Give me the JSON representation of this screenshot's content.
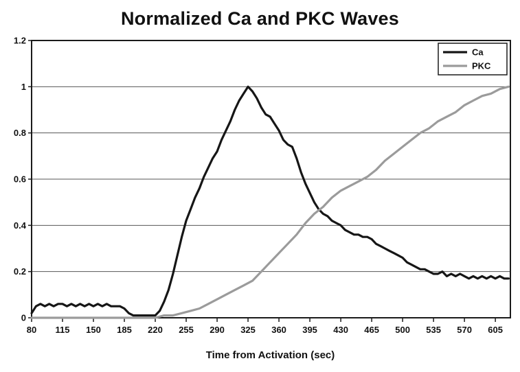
{
  "title": "Normalized Ca and PKC Waves",
  "xlabel": "Time from Activation (sec)",
  "chart_data": {
    "type": "line",
    "title": "Normalized Ca and PKC Waves",
    "xlabel": "Time from Activation (sec)",
    "ylabel": "",
    "xlim": [
      80,
      622
    ],
    "ylim": [
      0,
      1.2
    ],
    "xticks": [
      80,
      115,
      150,
      185,
      220,
      255,
      290,
      325,
      360,
      395,
      430,
      465,
      500,
      535,
      570,
      605
    ],
    "yticks": [
      0,
      0.2,
      0.4,
      0.6,
      0.8,
      1,
      1.2
    ],
    "ytick_labels": [
      "0",
      "0.2",
      "0.4",
      "0.6",
      "0.8",
      "1",
      "1.2"
    ],
    "grid": "horizontal",
    "grid_color": "#555555",
    "axis_color": "#1a1a1a",
    "legend_position": "top-right",
    "series": [
      {
        "name": "Ca",
        "color": "#161616",
        "width": 3.2,
        "x": [
          80,
          85,
          90,
          95,
          100,
          105,
          110,
          115,
          120,
          125,
          130,
          135,
          140,
          145,
          150,
          155,
          160,
          165,
          170,
          175,
          180,
          185,
          190,
          195,
          200,
          205,
          210,
          215,
          220,
          225,
          230,
          235,
          240,
          245,
          250,
          255,
          260,
          265,
          270,
          275,
          280,
          285,
          290,
          295,
          300,
          305,
          310,
          315,
          320,
          325,
          330,
          335,
          340,
          345,
          350,
          355,
          360,
          365,
          370,
          375,
          380,
          385,
          390,
          395,
          400,
          405,
          410,
          415,
          420,
          425,
          430,
          435,
          440,
          445,
          450,
          455,
          460,
          465,
          470,
          475,
          480,
          485,
          490,
          495,
          500,
          505,
          510,
          515,
          520,
          525,
          530,
          535,
          540,
          545,
          550,
          555,
          560,
          565,
          570,
          575,
          580,
          585,
          590,
          595,
          600,
          605,
          610,
          615,
          620
        ],
        "y": [
          0.02,
          0.05,
          0.06,
          0.05,
          0.06,
          0.05,
          0.06,
          0.06,
          0.05,
          0.06,
          0.05,
          0.06,
          0.05,
          0.06,
          0.05,
          0.06,
          0.05,
          0.06,
          0.05,
          0.05,
          0.05,
          0.04,
          0.02,
          0.01,
          0.01,
          0.01,
          0.01,
          0.01,
          0.01,
          0.03,
          0.07,
          0.12,
          0.19,
          0.27,
          0.35,
          0.42,
          0.47,
          0.52,
          0.56,
          0.61,
          0.65,
          0.69,
          0.72,
          0.77,
          0.81,
          0.85,
          0.9,
          0.94,
          0.97,
          1.0,
          0.98,
          0.95,
          0.91,
          0.88,
          0.87,
          0.84,
          0.81,
          0.77,
          0.75,
          0.74,
          0.69,
          0.63,
          0.58,
          0.54,
          0.5,
          0.47,
          0.45,
          0.44,
          0.42,
          0.41,
          0.4,
          0.38,
          0.37,
          0.36,
          0.36,
          0.35,
          0.35,
          0.34,
          0.32,
          0.31,
          0.3,
          0.29,
          0.28,
          0.27,
          0.26,
          0.24,
          0.23,
          0.22,
          0.21,
          0.21,
          0.2,
          0.19,
          0.19,
          0.2,
          0.18,
          0.19,
          0.18,
          0.19,
          0.18,
          0.17,
          0.18,
          0.17,
          0.18,
          0.17,
          0.18,
          0.17,
          0.18,
          0.17,
          0.17
        ]
      },
      {
        "name": "PKC",
        "color": "#9b9b9b",
        "width": 3.2,
        "x": [
          80,
          90,
          100,
          110,
          120,
          130,
          140,
          150,
          160,
          170,
          180,
          190,
          200,
          210,
          220,
          230,
          240,
          250,
          260,
          270,
          280,
          290,
          300,
          310,
          320,
          330,
          340,
          350,
          360,
          370,
          380,
          390,
          400,
          410,
          420,
          430,
          440,
          450,
          460,
          470,
          480,
          490,
          500,
          510,
          520,
          530,
          540,
          550,
          560,
          570,
          580,
          590,
          600,
          610,
          620
        ],
        "y": [
          0.0,
          0.0,
          0.0,
          0.0,
          0.0,
          0.0,
          0.0,
          0.0,
          0.0,
          0.0,
          0.0,
          0.0,
          0.0,
          0.0,
          0.0,
          0.01,
          0.01,
          0.02,
          0.03,
          0.04,
          0.06,
          0.08,
          0.1,
          0.12,
          0.14,
          0.16,
          0.2,
          0.24,
          0.28,
          0.32,
          0.36,
          0.41,
          0.45,
          0.48,
          0.52,
          0.55,
          0.57,
          0.59,
          0.61,
          0.64,
          0.68,
          0.71,
          0.74,
          0.77,
          0.8,
          0.82,
          0.85,
          0.87,
          0.89,
          0.92,
          0.94,
          0.96,
          0.97,
          0.99,
          1.0
        ]
      }
    ]
  }
}
